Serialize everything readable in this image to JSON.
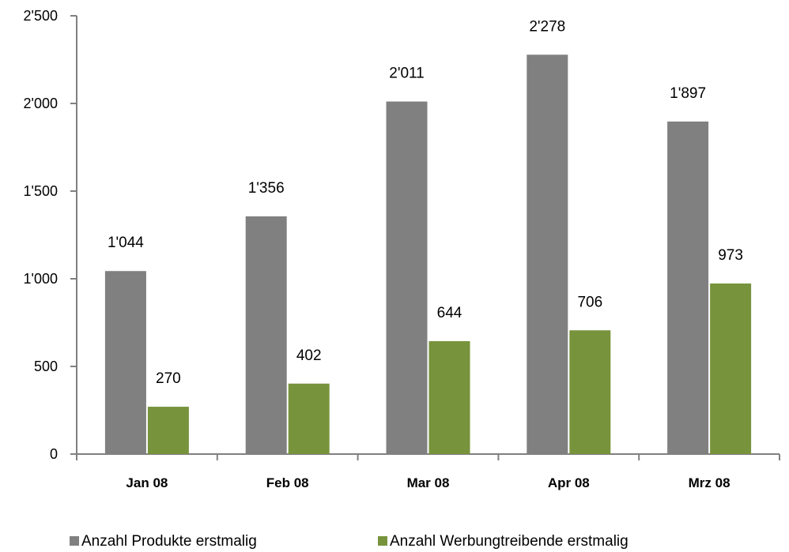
{
  "chart_data": {
    "type": "bar",
    "categories": [
      "Jan 08",
      "Feb 08",
      "Mar 08",
      "Apr 08",
      "Mrz 08"
    ],
    "series": [
      {
        "name": "Anzahl Produkte erstmalig",
        "color": "#808080",
        "values": [
          1044,
          1356,
          2011,
          2278,
          1897
        ],
        "labels": [
          "1'044",
          "1'356",
          "2'011",
          "2'278",
          "1'897"
        ]
      },
      {
        "name": "Anzahl Werbungtreibende erstmalig",
        "color": "#77933c",
        "values": [
          270,
          402,
          644,
          706,
          973
        ],
        "labels": [
          "270",
          "402",
          "644",
          "706",
          "973"
        ]
      }
    ],
    "ylim": [
      0,
      2500
    ],
    "yticks": [
      0,
      500,
      1000,
      1500,
      2000,
      2500
    ],
    "ytick_labels": [
      "0",
      "500",
      "1'000",
      "1'500",
      "2'000",
      "2'500"
    ],
    "title": "",
    "xlabel": "",
    "ylabel": "",
    "grid": false,
    "legend_position": "bottom"
  }
}
